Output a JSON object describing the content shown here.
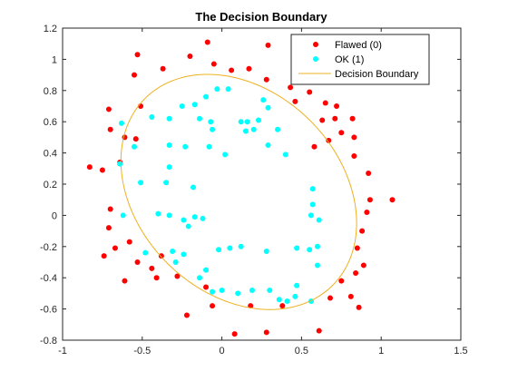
{
  "chart_data": {
    "type": "scatter",
    "title": "The Decision Boundary",
    "xlabel": "",
    "ylabel": "",
    "xlim": [
      -1,
      1.5
    ],
    "ylim": [
      -0.8,
      1.2
    ],
    "xticks": [
      -1,
      -0.5,
      0,
      0.5,
      1,
      1.5
    ],
    "yticks": [
      -0.8,
      -0.6,
      -0.4,
      -0.2,
      0,
      0.2,
      0.4,
      0.6,
      0.8,
      1,
      1.2
    ],
    "grid": false,
    "legend_position": "top-right",
    "series": [
      {
        "name": "Flawed (0)",
        "color": "#ff0000",
        "marker": "dot",
        "points": [
          [
            -0.09,
            1.11
          ],
          [
            0.29,
            1.09
          ],
          [
            -0.2,
            1.02
          ],
          [
            -0.53,
            1.03
          ],
          [
            -0.55,
            0.9
          ],
          [
            -0.37,
            0.94
          ],
          [
            -0.05,
            0.97
          ],
          [
            0.06,
            0.93
          ],
          [
            0.17,
            0.94
          ],
          [
            0.28,
            0.87
          ],
          [
            0.43,
            0.82
          ],
          [
            0.55,
            0.79
          ],
          [
            0.46,
            0.73
          ],
          [
            0.65,
            0.72
          ],
          [
            0.72,
            0.7
          ],
          [
            0.71,
            0.62
          ],
          [
            0.63,
            0.61
          ],
          [
            0.82,
            0.62
          ],
          [
            0.75,
            0.53
          ],
          [
            0.83,
            0.5
          ],
          [
            0.67,
            0.48
          ],
          [
            0.58,
            0.44
          ],
          [
            0.83,
            0.38
          ],
          [
            -0.51,
            0.7
          ],
          [
            -0.71,
            0.68
          ],
          [
            -0.7,
            0.55
          ],
          [
            -0.54,
            0.49
          ],
          [
            -0.61,
            0.5
          ],
          [
            -0.83,
            0.31
          ],
          [
            -0.75,
            0.29
          ],
          [
            -0.64,
            0.34
          ],
          [
            -0.7,
            0.04
          ],
          [
            -0.71,
            -0.08
          ],
          [
            -0.67,
            -0.21
          ],
          [
            -0.58,
            -0.17
          ],
          [
            -0.74,
            -0.26
          ],
          [
            -0.53,
            -0.3
          ],
          [
            -0.38,
            -0.26
          ],
          [
            -0.44,
            -0.34
          ],
          [
            -0.41,
            -0.4
          ],
          [
            -0.61,
            -0.42
          ],
          [
            -0.28,
            -0.39
          ],
          [
            -0.1,
            -0.46
          ],
          [
            -0.22,
            -0.64
          ],
          [
            -0.06,
            -0.58
          ],
          [
            0.18,
            -0.58
          ],
          [
            0.08,
            -0.76
          ],
          [
            0.28,
            -0.75
          ],
          [
            0.38,
            -0.58
          ],
          [
            0.61,
            -0.74
          ],
          [
            0.68,
            -0.53
          ],
          [
            0.81,
            -0.52
          ],
          [
            0.86,
            -0.59
          ],
          [
            0.75,
            -0.42
          ],
          [
            0.84,
            -0.37
          ],
          [
            0.89,
            -0.32
          ],
          [
            0.85,
            -0.21
          ],
          [
            0.88,
            -0.1
          ],
          [
            0.91,
            0.02
          ],
          [
            0.93,
            0.1
          ],
          [
            1.07,
            0.1
          ],
          [
            0.92,
            0.27
          ]
        ]
      },
      {
        "name": "OK (1)",
        "color": "#00ffff",
        "marker": "dot",
        "points": [
          [
            -0.63,
            0.59
          ],
          [
            -0.44,
            0.63
          ],
          [
            -0.55,
            0.44
          ],
          [
            -0.33,
            0.62
          ],
          [
            -0.17,
            0.71
          ],
          [
            -0.1,
            0.76
          ],
          [
            0.04,
            0.81
          ],
          [
            -0.03,
            0.81
          ],
          [
            -0.25,
            0.7
          ],
          [
            -0.14,
            0.62
          ],
          [
            -0.07,
            0.6
          ],
          [
            0.12,
            0.6
          ],
          [
            0.26,
            0.74
          ],
          [
            0.29,
            0.69
          ],
          [
            0.23,
            0.61
          ],
          [
            0.16,
            0.6
          ],
          [
            0.15,
            0.54
          ],
          [
            0.2,
            0.55
          ],
          [
            0.35,
            0.55
          ],
          [
            0.29,
            0.45
          ],
          [
            0.4,
            0.39
          ],
          [
            -0.23,
            0.44
          ],
          [
            -0.33,
            0.45
          ],
          [
            -0.08,
            0.44
          ],
          [
            -0.06,
            0.55
          ],
          [
            -0.64,
            0.33
          ],
          [
            -0.33,
            0.31
          ],
          [
            0.02,
            0.39
          ],
          [
            0.57,
            0.17
          ],
          [
            0.57,
            0.07
          ],
          [
            -0.51,
            0.21
          ],
          [
            -0.35,
            0.21
          ],
          [
            -0.18,
            0.18
          ],
          [
            -0.62,
            0.0
          ],
          [
            -0.4,
            0.01
          ],
          [
            -0.33,
            0.0
          ],
          [
            -0.17,
            -0.01
          ],
          [
            -0.12,
            -0.02
          ],
          [
            -0.21,
            -0.07
          ],
          [
            -0.24,
            -0.03
          ],
          [
            0.56,
            0.0
          ],
          [
            0.61,
            -0.03
          ],
          [
            -0.48,
            -0.24
          ],
          [
            -0.31,
            -0.23
          ],
          [
            -0.24,
            -0.25
          ],
          [
            -0.02,
            -0.22
          ],
          [
            0.05,
            -0.21
          ],
          [
            0.12,
            -0.2
          ],
          [
            0.28,
            -0.23
          ],
          [
            0.47,
            -0.21
          ],
          [
            0.55,
            -0.22
          ],
          [
            0.6,
            -0.2
          ],
          [
            0.6,
            -0.32
          ],
          [
            0.47,
            -0.45
          ],
          [
            -0.29,
            -0.3
          ],
          [
            -0.14,
            -0.4
          ],
          [
            -0.1,
            -0.35
          ],
          [
            -0.06,
            -0.49
          ],
          [
            0.0,
            -0.48
          ],
          [
            0.1,
            -0.5
          ],
          [
            0.19,
            -0.48
          ],
          [
            0.3,
            -0.48
          ],
          [
            0.46,
            -0.52
          ],
          [
            0.36,
            -0.54
          ],
          [
            0.41,
            -0.55
          ],
          [
            0.56,
            -0.55
          ]
        ]
      }
    ],
    "boundary": {
      "name": "Decision Boundary",
      "color": "#edb120",
      "shape": "ellipse",
      "center": [
        0.106,
        0.15
      ],
      "semi_axis_major": 0.84,
      "semi_axis_minor": 0.64,
      "rotation_deg": -47
    },
    "legend_entries": [
      "Flawed (0)",
      "OK (1)",
      "Decision Boundary"
    ]
  }
}
